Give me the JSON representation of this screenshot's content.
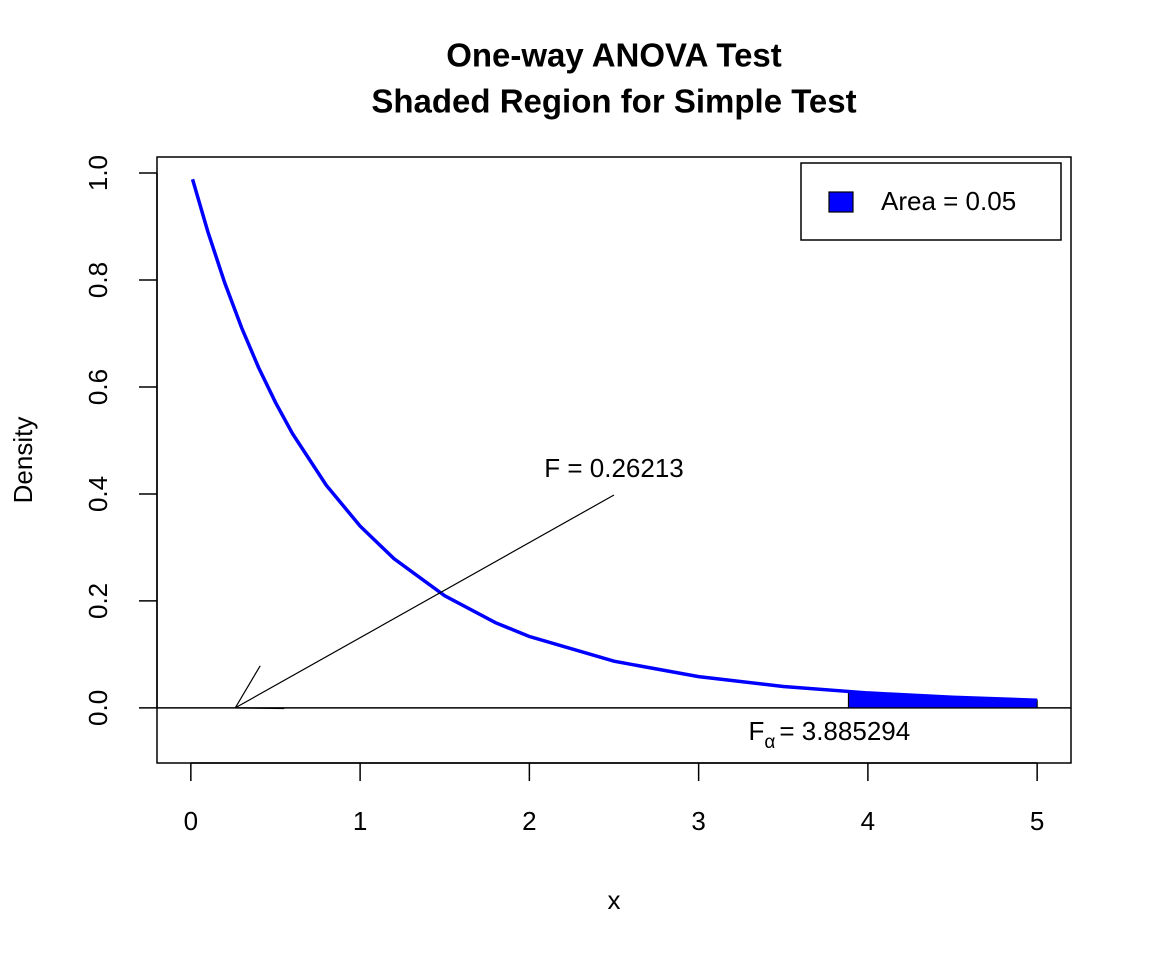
{
  "chart_data": {
    "type": "line",
    "title": "One-way ANOVA Test",
    "subtitle": "Shaded Region for Simple Test",
    "x_label": "x",
    "y_label": "Density",
    "xlim": [
      -0.2,
      5.2
    ],
    "ylim": [
      -0.103,
      1.03
    ],
    "xticks": [
      0,
      1,
      2,
      3,
      4,
      5
    ],
    "yticks": [
      {
        "value": 0,
        "label": "0.0"
      },
      {
        "value": 0.2,
        "label": "0.2"
      },
      {
        "value": 0.4,
        "label": "0.4"
      },
      {
        "value": 0.6,
        "label": "0.6"
      },
      {
        "value": 0.8,
        "label": "0.8"
      },
      {
        "value": 1,
        "label": "1.0"
      }
    ],
    "series": [
      {
        "color": "#0000ff",
        "x": [
          0.01,
          0.1,
          0.2,
          0.3,
          0.4,
          0.5,
          0.6,
          0.8,
          1.0,
          1.2,
          1.5,
          1.8,
          2.0,
          2.5,
          3.0,
          3.5,
          4.0,
          4.5,
          5.0
        ],
        "values": [
          0.9884,
          0.8907,
          0.7949,
          0.7107,
          0.6365,
          0.5711,
          0.5132,
          0.4164,
          0.3399,
          0.2791,
          0.2097,
          0.1593,
          0.1335,
          0.0873,
          0.0585,
          0.0401,
          0.028,
          0.0199,
          0.0144
        ]
      }
    ],
    "area": {
      "name": "Area = 0.05",
      "color": "#0000ff",
      "x": [
        3.885294,
        4.0,
        4.5,
        5.0
      ],
      "values": [
        0.0304,
        0.028,
        0.0199,
        0.0144
      ]
    },
    "legend": "topright",
    "statistic": {
      "label": "F = 0.26213",
      "value": 0.26213
    },
    "critical": {
      "symbol": "F",
      "subscript": "α",
      "text": "= 3.885294",
      "value": 3.885294
    }
  }
}
